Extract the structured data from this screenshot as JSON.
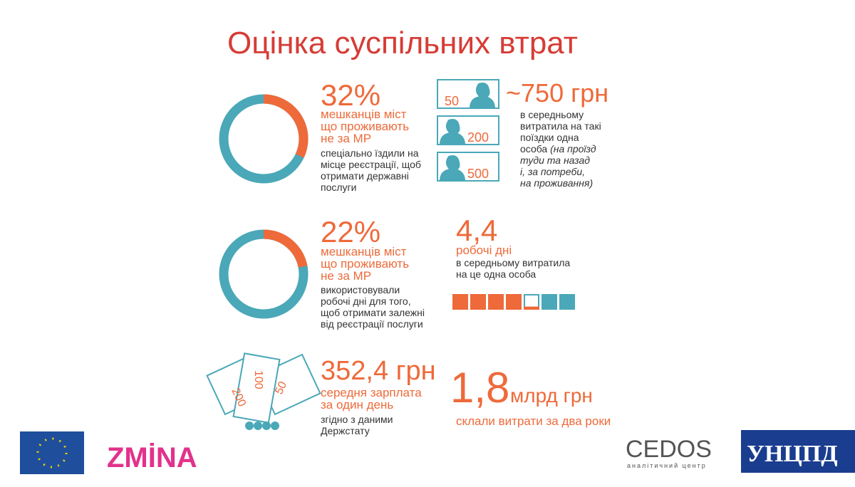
{
  "title": "Оцінка суспільних втрат",
  "stats": [
    {
      "value": 32,
      "value_label": "32%",
      "lines": [
        "мешканців міст",
        "що проживають",
        "не за МР"
      ],
      "description": [
        "спеціально їздили на",
        "місце реєстрації, щоб",
        "отримати державні",
        "послуги"
      ]
    },
    {
      "value": 22,
      "value_label": "22%",
      "lines": [
        "мешканців міст",
        "що проживають",
        "не за МР"
      ],
      "description": [
        "використовували",
        "робочі дні для того,",
        "щоб отримати залежні",
        "від реєстрації послуги"
      ]
    }
  ],
  "trip_cost": {
    "label": "~750 грн",
    "banknotes": [
      "50",
      "200",
      "500"
    ],
    "description": [
      "в середньому",
      "витратила на такі",
      "поїздки одна",
      "особа"
    ],
    "note": [
      "(на проїзд",
      "туди та назад",
      "і, за потреби,",
      "на проживання)"
    ]
  },
  "work_days": {
    "value": 4.4,
    "value_label": "4,4",
    "unit": "робочі дні",
    "description": [
      "в середньому витратила",
      "на це одна особа"
    ]
  },
  "salary": {
    "label": "352,4 грн",
    "banknotes": [
      "100",
      "200",
      "50"
    ],
    "description": [
      "середня зарплата",
      "за один день"
    ],
    "source": [
      "згідно з даними",
      "Держстату"
    ]
  },
  "total": {
    "number": "1,8",
    "unit": "млрд грн",
    "description": "склали витрати за два роки"
  },
  "logos": {
    "zmina": "ZMİNA",
    "cedos": "CEDOS",
    "cedos_sub": "аналітичний центр",
    "uncpd": "УНЦПД"
  }
}
